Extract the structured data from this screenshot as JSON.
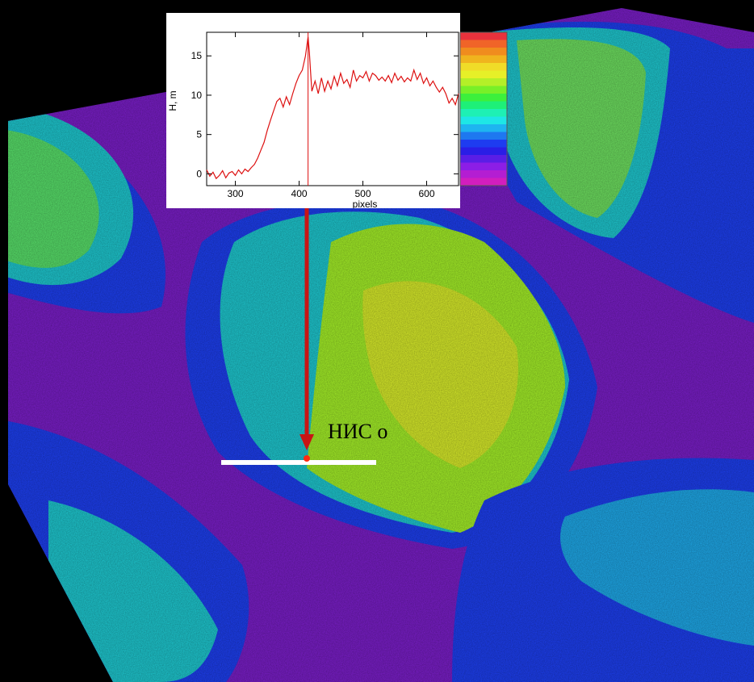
{
  "scene": {
    "description_colors": {
      "background": "#000000",
      "low_terrain": "#7a1ec8",
      "mid_terrain": "#1d3ff0",
      "upper_terrain": "#1ec8d0",
      "high_terrain": "#a4f028",
      "peak": "#e8f020"
    },
    "station_label": "НИС о",
    "profile_line_color": "#ffffff",
    "arrow_color": "#c81414"
  },
  "colorbar": {
    "colors": [
      "#e8323c",
      "#f06428",
      "#f08c1e",
      "#f0b41e",
      "#f0dc28",
      "#e6f028",
      "#b4f028",
      "#78f028",
      "#3cf03c",
      "#1ef078",
      "#1ef0b4",
      "#1ee6e6",
      "#1eb4f0",
      "#1e78f0",
      "#1e3cf0",
      "#2a1ee6",
      "#5a1ee6",
      "#8c1ee6",
      "#b41ed2",
      "#d21ebe"
    ]
  },
  "chart_data": {
    "type": "line",
    "title": "",
    "xlabel": "pixels",
    "ylabel": "H, m",
    "xlim": [
      255,
      650
    ],
    "ylim": [
      -1.5,
      18
    ],
    "xticks": [
      300,
      400,
      500,
      600
    ],
    "yticks": [
      0,
      5,
      10,
      15
    ],
    "grid": false,
    "series": [
      {
        "color": "#dd1111",
        "x": [
          255,
          260,
          265,
          270,
          275,
          280,
          285,
          290,
          295,
          300,
          305,
          310,
          315,
          320,
          325,
          330,
          335,
          340,
          345,
          350,
          355,
          360,
          365,
          370,
          375,
          380,
          385,
          390,
          395,
          400,
          405,
          410,
          414,
          416,
          418,
          420,
          425,
          430,
          435,
          440,
          445,
          450,
          455,
          460,
          465,
          470,
          475,
          480,
          485,
          490,
          495,
          500,
          505,
          510,
          515,
          520,
          525,
          530,
          535,
          540,
          545,
          550,
          555,
          560,
          565,
          570,
          575,
          580,
          585,
          590,
          595,
          600,
          605,
          610,
          615,
          620,
          625,
          630,
          635,
          640,
          645,
          650
        ],
        "y": [
          0.5,
          -0.3,
          0.2,
          -0.6,
          -0.2,
          0.4,
          -0.5,
          0.1,
          0.3,
          -0.2,
          0.5,
          0.0,
          0.6,
          0.3,
          0.8,
          1.2,
          2.0,
          3.0,
          4.0,
          5.5,
          6.8,
          8.0,
          9.2,
          9.6,
          8.5,
          9.8,
          8.8,
          10.2,
          11.5,
          12.5,
          13.2,
          15.0,
          17.4,
          15.5,
          13.0,
          10.5,
          11.8,
          10.2,
          12.2,
          10.5,
          11.8,
          10.8,
          12.4,
          11.2,
          12.8,
          11.5,
          12.0,
          11.0,
          13.2,
          11.8,
          12.5,
          12.2,
          13.0,
          11.8,
          12.8,
          12.5,
          11.9,
          12.3,
          11.8,
          12.5,
          11.6,
          12.8,
          11.9,
          12.4,
          11.7,
          12.2,
          11.8,
          13.2,
          12.0,
          12.8,
          11.5,
          12.2,
          11.2,
          11.8,
          11.0,
          10.4,
          11.0,
          10.2,
          9.0,
          9.6,
          8.8,
          10.2
        ]
      }
    ],
    "marker_line": {
      "x": 414,
      "color": "#dd1111"
    }
  }
}
